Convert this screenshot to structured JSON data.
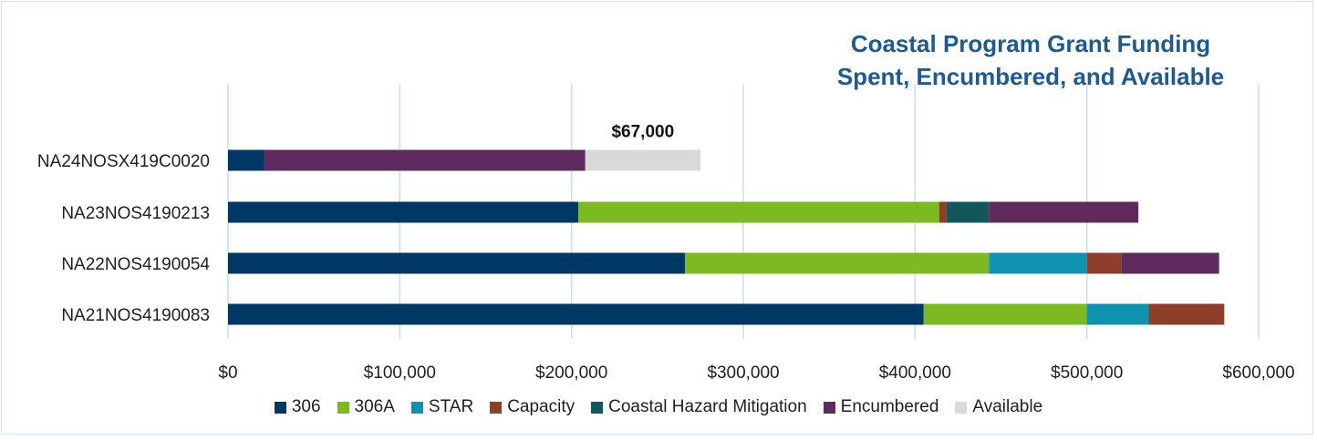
{
  "chart_data": {
    "type": "bar",
    "orientation": "horizontal",
    "stacked": true,
    "title": [
      "Coastal Program Grant Funding",
      "Spent, Encumbered, and Available"
    ],
    "categories": [
      "NA24NOSX419C0020",
      "NA23NOS4190213",
      "NA22NOS4190054",
      "NA21NOS4190083"
    ],
    "series": [
      {
        "name": "306",
        "color": "#003865",
        "values": [
          21000,
          204000,
          266000,
          405000
        ]
      },
      {
        "name": "306A",
        "color": "#7dba22",
        "values": [
          0,
          210000,
          177000,
          95000
        ]
      },
      {
        "name": "STAR",
        "color": "#0f93b0",
        "values": [
          0,
          0,
          57000,
          36000
        ]
      },
      {
        "name": "Capacity",
        "color": "#8e3f2a",
        "values": [
          0,
          4000,
          20000,
          44000
        ]
      },
      {
        "name": "Coastal Hazard Mitigation",
        "color": "#14565a",
        "values": [
          0,
          25000,
          0,
          0
        ]
      },
      {
        "name": "Encumbered",
        "color": "#5f2a5d",
        "values": [
          187000,
          87000,
          57000,
          0
        ]
      },
      {
        "name": "Available",
        "color": "#d9d9d9",
        "values": [
          67000,
          0,
          0,
          0
        ]
      }
    ],
    "xlim": [
      0,
      600000
    ],
    "xticks": [
      0,
      100000,
      200000,
      300000,
      400000,
      500000,
      600000
    ],
    "xtick_labels": [
      "$0",
      "$100,000",
      "$200,000",
      "$300,000",
      "$400,000",
      "$500,000",
      "$600,000"
    ],
    "annotations": [
      {
        "category": "NA24NOSX419C0020",
        "series": "Available",
        "text": "$67,000"
      }
    ],
    "grid": true,
    "legend_position": "bottom"
  }
}
